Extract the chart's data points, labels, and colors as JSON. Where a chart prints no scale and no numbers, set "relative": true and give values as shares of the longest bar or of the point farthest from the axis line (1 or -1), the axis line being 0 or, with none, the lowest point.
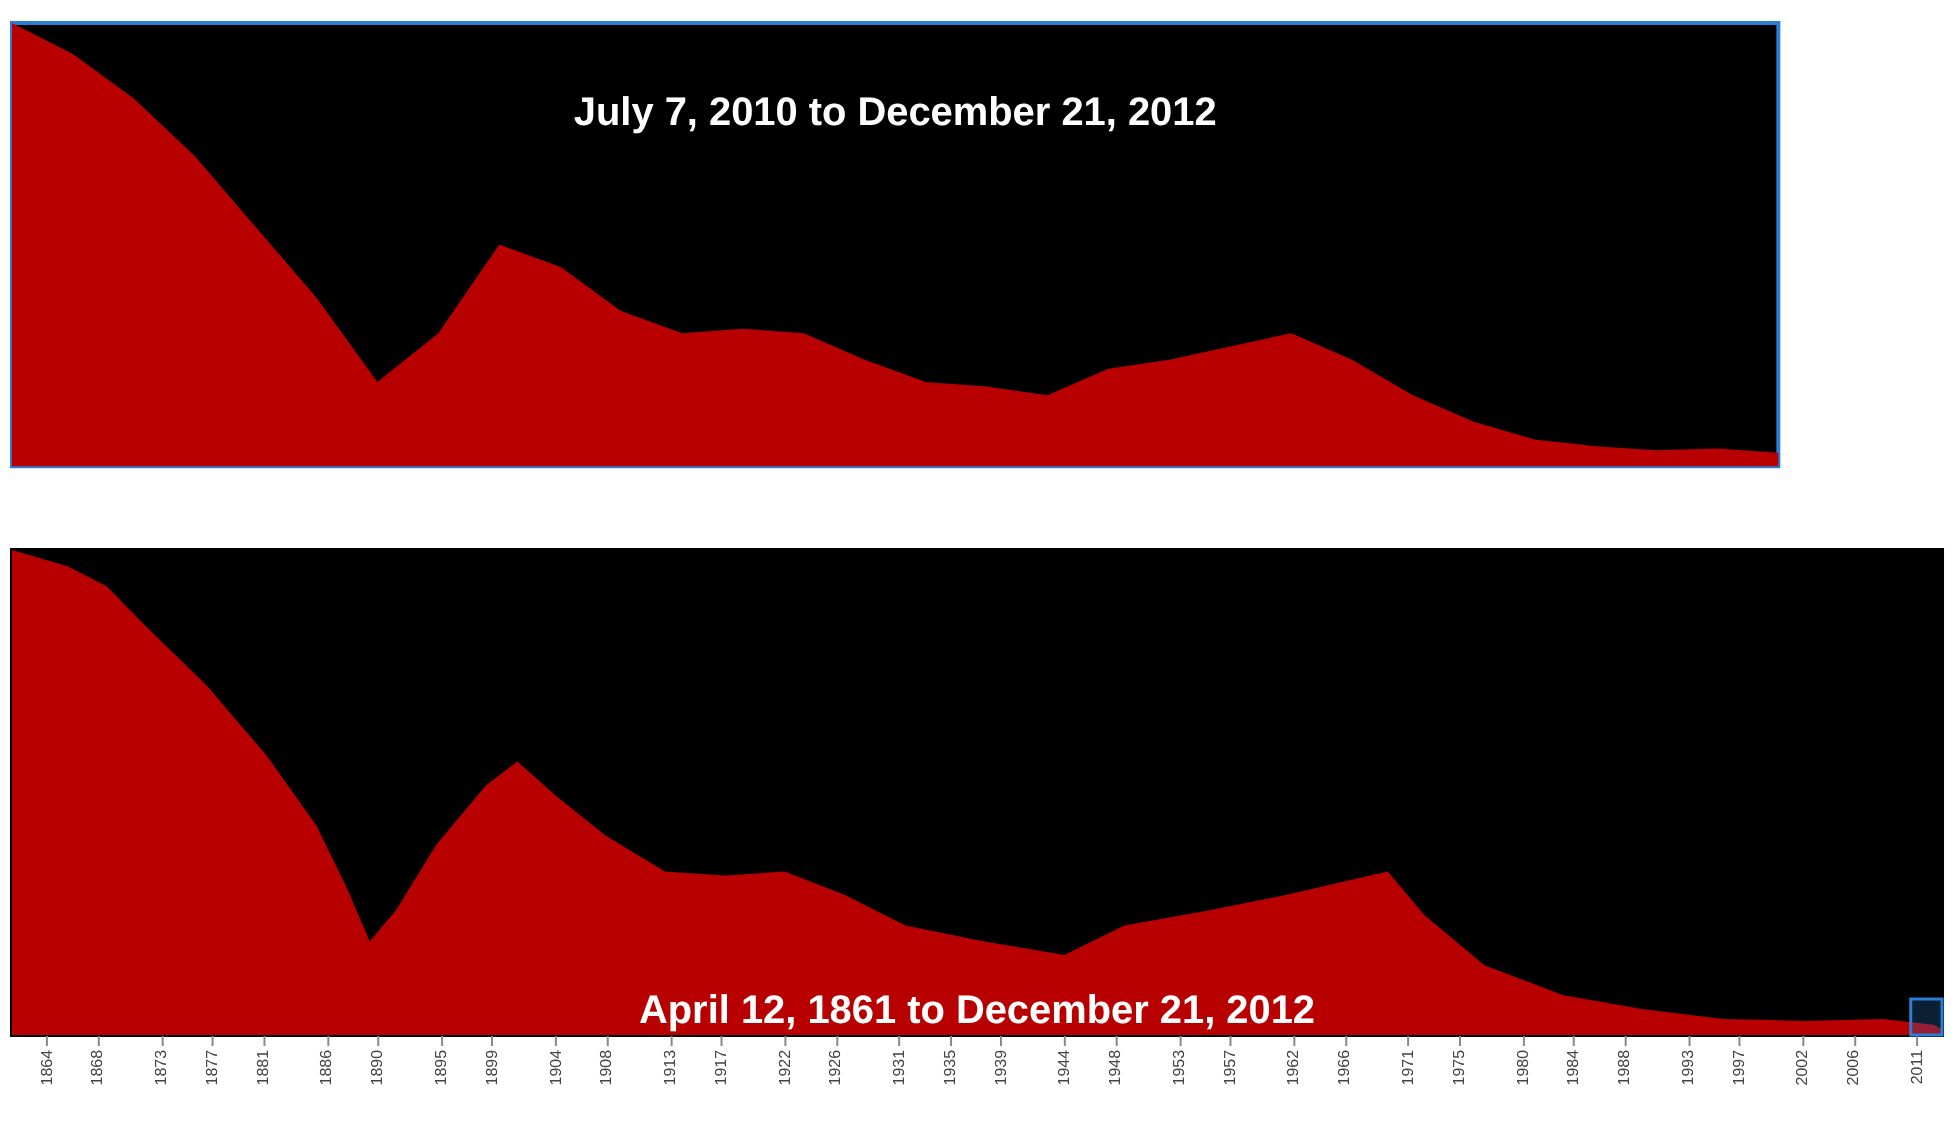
{
  "chart_data": [
    {
      "type": "area",
      "title": "July 7, 2010 to December 21, 2012",
      "relative": true,
      "tick_labels": false,
      "grid": false,
      "categories": [
        null,
        null,
        null,
        null,
        null,
        null,
        null,
        null,
        null,
        null,
        null,
        null,
        null,
        null,
        null,
        null,
        null,
        null,
        null,
        null,
        null,
        null,
        null,
        null,
        null,
        null,
        null,
        null,
        null,
        null
      ],
      "series": [
        {
          "color": "#b80000",
          "values": [
            1.0,
            0.93,
            0.83,
            0.7,
            0.54,
            0.38,
            0.19,
            0.3,
            0.5,
            0.45,
            0.35,
            0.3,
            0.31,
            0.3,
            0.24,
            0.19,
            0.18,
            0.16,
            0.22,
            0.24,
            0.27,
            0.3,
            0.24,
            0.16,
            0.1,
            0.06,
            0.045,
            0.036,
            0.04,
            0.03
          ]
        }
      ]
    },
    {
      "type": "area",
      "title": "April 12, 1861 to December 21, 2012",
      "relative": true,
      "tick_labels": "x",
      "grid": false,
      "x": [
        1861.28,
        1865.6,
        1868.7,
        1871.8,
        1876.6,
        1881.3,
        1885.2,
        1887.5,
        1889.4,
        1891.5,
        1894.6,
        1898.5,
        1901.0,
        1904.0,
        1907.9,
        1912.6,
        1917.3,
        1922.0,
        1926.8,
        1931.5,
        1937.7,
        1944.0,
        1948.7,
        1955.0,
        1961.3,
        1969.4,
        1972.3,
        1977.0,
        1983.2,
        1989.5,
        1995.8,
        2002.1,
        2008.3,
        2012.3,
        2012.97
      ],
      "xlim": [
        1861.28,
        2012.97
      ],
      "xticks": [
        1864,
        1868,
        1873,
        1877,
        1881,
        1886,
        1890,
        1895,
        1899,
        1904,
        1908,
        1913,
        1917,
        1922,
        1926,
        1931,
        1935,
        1939,
        1944,
        1948,
        1953,
        1957,
        1962,
        1966,
        1971,
        1975,
        1980,
        1984,
        1988,
        1993,
        1997,
        2002,
        2006,
        2011
      ],
      "bands": [
        {
          "axis": "x",
          "from": 2010.51,
          "to": 2012.97,
          "color": "#2a7fd4"
        }
      ],
      "series": [
        {
          "color": "#b80000",
          "values": [
            1.0,
            0.967,
            0.926,
            0.843,
            0.72,
            0.576,
            0.432,
            0.309,
            0.193,
            0.259,
            0.391,
            0.514,
            0.564,
            0.494,
            0.412,
            0.337,
            0.329,
            0.337,
            0.288,
            0.226,
            0.193,
            0.165,
            0.226,
            0.255,
            0.288,
            0.337,
            0.247,
            0.144,
            0.082,
            0.053,
            0.033,
            0.029,
            0.033,
            0.021,
            0.012
          ]
        }
      ]
    }
  ]
}
